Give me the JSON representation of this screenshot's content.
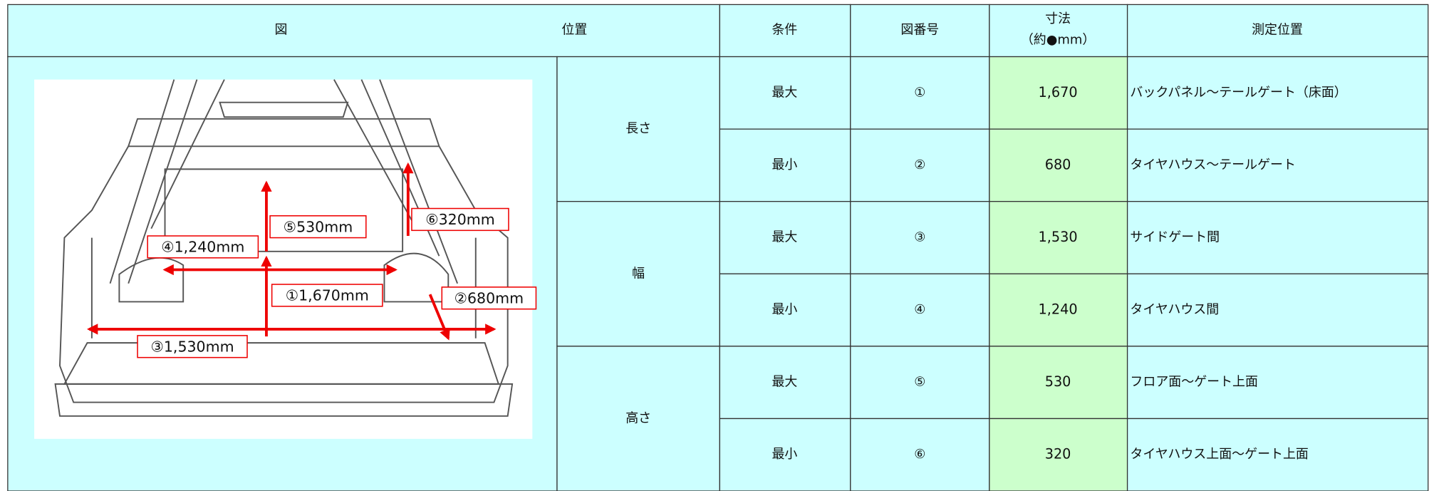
{
  "header": {
    "figure": "図",
    "position": "位置",
    "condition": "条件",
    "figure_no": "図番号",
    "dimension": [
      "寸法",
      "（約●mm）"
    ],
    "measure": "測定位置"
  },
  "groups": [
    {
      "position": "長さ",
      "rows": [
        {
          "condition": "最大",
          "no": "①",
          "value": "1,670",
          "measure": "バックパネル～テールゲート（床面）"
        },
        {
          "condition": "最小",
          "no": "②",
          "value": "680",
          "measure": "タイヤハウス～テールゲート"
        }
      ]
    },
    {
      "position": "幅",
      "rows": [
        {
          "condition": "最大",
          "no": "③",
          "value": "1,530",
          "measure": "サイドゲート間"
        },
        {
          "condition": "最小",
          "no": "④",
          "value": "1,240",
          "measure": "タイヤハウス間"
        }
      ]
    },
    {
      "position": "高さ",
      "rows": [
        {
          "condition": "最大",
          "no": "⑤",
          "value": "530",
          "measure": "フロア面～ゲート上面"
        },
        {
          "condition": "最小",
          "no": "⑥",
          "value": "320",
          "measure": "タイヤハウス上面～ゲート上面"
        }
      ]
    }
  ],
  "figure_labels": [
    "⑤530mm",
    "⑥320mm",
    "④1,240mm",
    "①1,670mm",
    "②680mm",
    "③1,530mm"
  ]
}
